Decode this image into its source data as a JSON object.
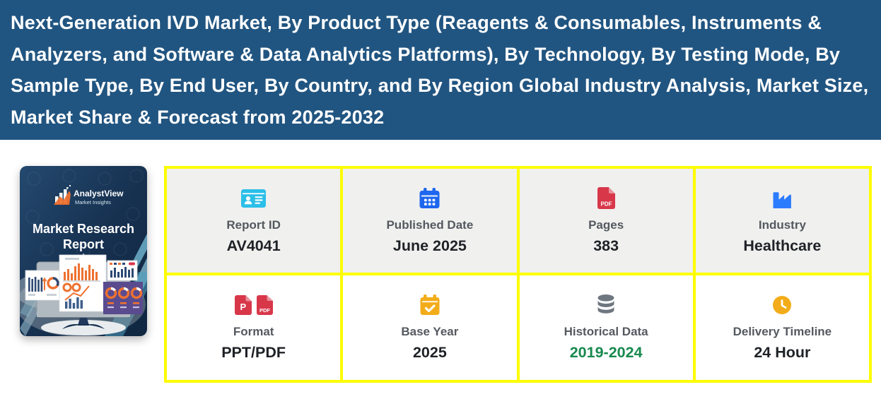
{
  "header": {
    "title": "Next-Generation IVD Market, By Product Type (Reagents & Consumables, Instruments & Analyzers, and Software & Data Analytics Platforms), By Technology, By Testing Mode, By Sample Type, By End User, By Country, and By Region Global Industry Analysis, Market Size, Market Share & Forecast from 2025-2032"
  },
  "cover": {
    "brand": "AnalystView",
    "brand_tagline": "Market Insights",
    "title_line1": "Market Research",
    "title_line2": "Report"
  },
  "info_cards": [
    {
      "id": "report-id",
      "icon": "id-card-icon",
      "label": "Report ID",
      "value": "AV4041"
    },
    {
      "id": "published-date",
      "icon": "calendar-icon",
      "label": "Published Date",
      "value": "June 2025"
    },
    {
      "id": "pages",
      "icon": "pdf-file-icon",
      "label": "Pages",
      "value": "383"
    },
    {
      "id": "industry",
      "icon": "factory-icon",
      "label": "Industry",
      "value": "Healthcare"
    },
    {
      "id": "format",
      "icon": "ppt-pdf-file-icons",
      "label": "Format",
      "value": "PPT/PDF"
    },
    {
      "id": "base-year",
      "icon": "calendar-check-icon",
      "label": "Base Year",
      "value": "2025"
    },
    {
      "id": "historical-data",
      "icon": "database-icon",
      "label": "Historical Data",
      "value": "2019-2024",
      "value_color": "#17894e"
    },
    {
      "id": "delivery-timeline",
      "icon": "clock-icon",
      "label": "Delivery Timeline",
      "value": "24 Hour"
    }
  ],
  "colors": {
    "header_bg": "#215581",
    "header_text": "#ffffff",
    "card_border": "#fdfd00",
    "card_bg_row1": "#f0f0ef",
    "card_bg_row2": "#ffffff",
    "label_text": "#54595f",
    "value_text": "#1e2126",
    "historical_green": "#17894e",
    "icon_cyan": "#2bbfe8",
    "icon_blue": "#1d66ee",
    "icon_blue_bright": "#2b7bfe",
    "icon_red": "#d8374a",
    "icon_amber": "#f3ac19",
    "icon_gray": "#6e7680"
  }
}
